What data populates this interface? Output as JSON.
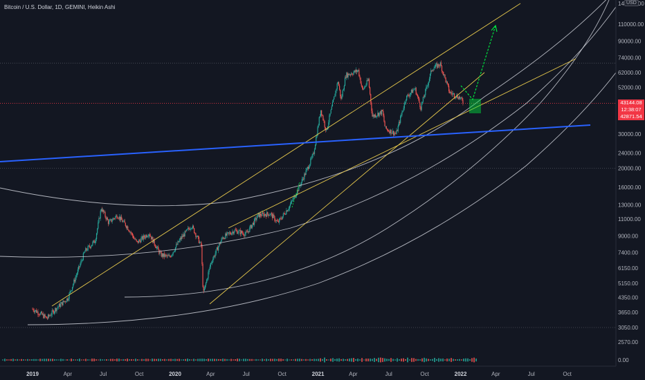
{
  "title": "Bitcoin / U.S. Dollar, 1D, GEMINI, Heikin Ashi",
  "currency_badge": "USD",
  "price_tags": {
    "price": "43144.08",
    "countdown": "12:38:07",
    "low": "42871.54"
  },
  "y_axis": {
    "scale": "log",
    "ticks": [
      "140000.00",
      "110000.00",
      "90000.00",
      "74000.00",
      "62000.00",
      "52000.00",
      "43144.08",
      "30000.00",
      "24000.00",
      "20000.00",
      "16000.00",
      "13000.00",
      "11000.00",
      "9000.00",
      "7400.00",
      "6150.00",
      "5150.00",
      "4350.00",
      "3650.00",
      "3050.00",
      "2570.00",
      "0.00"
    ]
  },
  "x_axis": {
    "ticks": [
      {
        "label": "2019",
        "bold": true
      },
      {
        "label": "Apr",
        "bold": false
      },
      {
        "label": "Jul",
        "bold": false
      },
      {
        "label": "Oct",
        "bold": false
      },
      {
        "label": "2020",
        "bold": true
      },
      {
        "label": "Apr",
        "bold": false
      },
      {
        "label": "Jul",
        "bold": false
      },
      {
        "label": "Oct",
        "bold": false
      },
      {
        "label": "2021",
        "bold": true
      },
      {
        "label": "Apr",
        "bold": false
      },
      {
        "label": "Jul",
        "bold": false
      },
      {
        "label": "Oct",
        "bold": false
      },
      {
        "label": "2022",
        "bold": true
      },
      {
        "label": "Apr",
        "bold": false
      },
      {
        "label": "Jul",
        "bold": false
      },
      {
        "label": "Oct",
        "bold": false
      }
    ]
  },
  "colors": {
    "background": "#131722",
    "up": "#26a69a",
    "down": "#ef5350",
    "curves": "#d1d4dc",
    "trend": "#e6c84c",
    "support": "#2962ff",
    "projection": "#00e640",
    "price_line": "#f23645"
  },
  "chart_data": {
    "type": "candlestick",
    "series_style": "Heikin Ashi",
    "interval": "1D",
    "symbol": "Bitcoin / U.S. Dollar",
    "exchange": "GEMINI",
    "last_price": 43144.08,
    "price_path": [
      [
        "2019-01-01",
        3800
      ],
      [
        "2019-01-20",
        3600
      ],
      [
        "2019-02-07",
        3400
      ],
      [
        "2019-03-01",
        3800
      ],
      [
        "2019-04-01",
        4300
      ],
      [
        "2019-04-15",
        5100
      ],
      [
        "2019-05-15",
        7500
      ],
      [
        "2019-06-10",
        8500
      ],
      [
        "2019-06-26",
        12500
      ],
      [
        "2019-07-15",
        10500
      ],
      [
        "2019-08-06",
        11500
      ],
      [
        "2019-09-01",
        10000
      ],
      [
        "2019-09-25",
        8300
      ],
      [
        "2019-10-26",
        9300
      ],
      [
        "2019-11-25",
        7200
      ],
      [
        "2019-12-18",
        7000
      ],
      [
        "2020-01-15",
        8700
      ],
      [
        "2020-02-12",
        10200
      ],
      [
        "2020-03-08",
        8000
      ],
      [
        "2020-03-13",
        4500
      ],
      [
        "2020-04-01",
        6500
      ],
      [
        "2020-05-01",
        8800
      ],
      [
        "2020-06-01",
        9600
      ],
      [
        "2020-07-01",
        9200
      ],
      [
        "2020-08-01",
        11500
      ],
      [
        "2020-09-01",
        11700
      ],
      [
        "2020-09-20",
        10500
      ],
      [
        "2020-10-20",
        12800
      ],
      [
        "2020-11-10",
        15500
      ],
      [
        "2020-12-01",
        19200
      ],
      [
        "2020-12-20",
        23500
      ],
      [
        "2021-01-08",
        40000
      ],
      [
        "2021-01-22",
        31000
      ],
      [
        "2021-02-21",
        56000
      ],
      [
        "2021-03-01",
        45000
      ],
      [
        "2021-03-13",
        60000
      ],
      [
        "2021-04-14",
        63500
      ],
      [
        "2021-04-25",
        50000
      ],
      [
        "2021-05-10",
        57000
      ],
      [
        "2021-05-20",
        37000
      ],
      [
        "2021-06-15",
        39000
      ],
      [
        "2021-06-22",
        32000
      ],
      [
        "2021-07-20",
        30000
      ],
      [
        "2021-08-14",
        46000
      ],
      [
        "2021-09-06",
        51500
      ],
      [
        "2021-09-21",
        41000
      ],
      [
        "2021-10-20",
        65000
      ],
      [
        "2021-11-10",
        68500
      ],
      [
        "2021-12-04",
        49000
      ],
      [
        "2021-12-31",
        46000
      ],
      [
        "2022-01-08",
        43144.08
      ]
    ]
  }
}
